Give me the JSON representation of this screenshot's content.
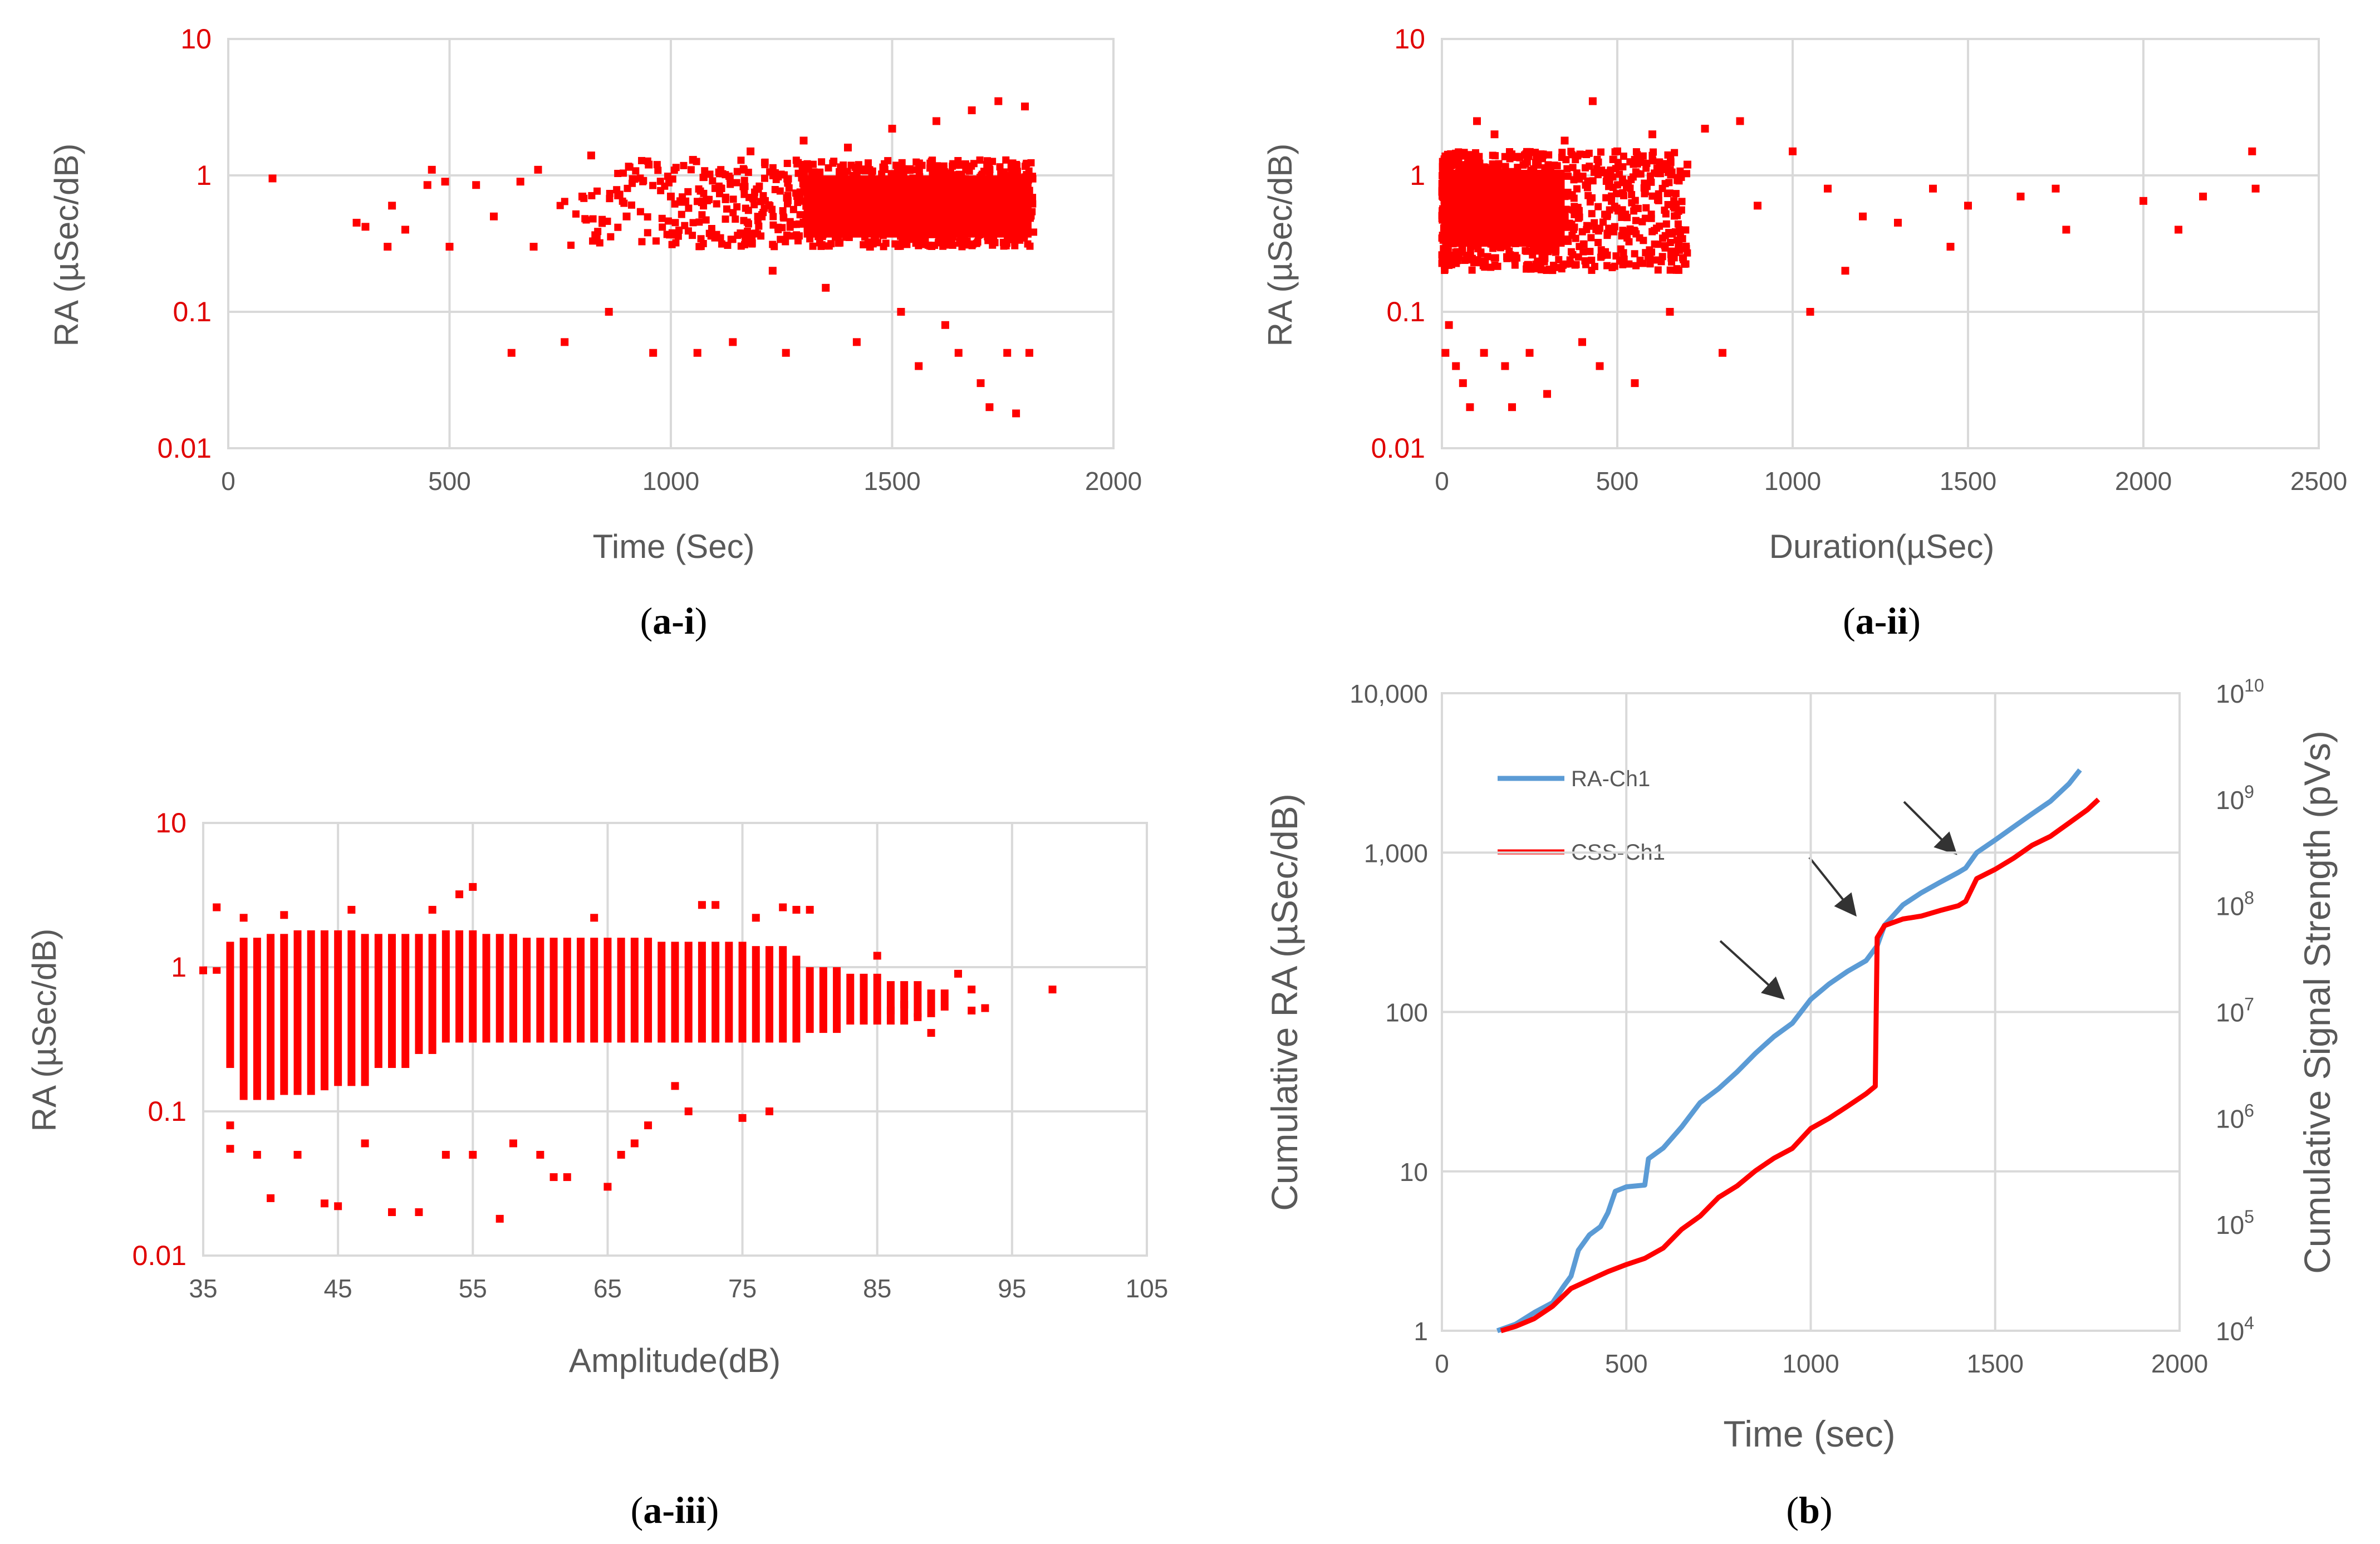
{
  "chart_data": [
    {
      "id": "a-i",
      "type": "scatter",
      "caption": {
        "prefix": "(",
        "bold": "a-i",
        "suffix": ")"
      },
      "xlabel": "Time (Sec)",
      "ylabel": "RA (µSec/dB)",
      "xlim": [
        0,
        2000
      ],
      "ylim": [
        0.01,
        10
      ],
      "yscale": "log",
      "xticks": [
        0,
        500,
        1000,
        1500,
        2000
      ],
      "yticks": [
        0.01,
        0.1,
        1,
        10
      ],
      "xtick_labels": [
        "0",
        "500",
        "1000",
        "1500",
        "2000"
      ],
      "ytick_labels": [
        "0.01",
        "0.1",
        "1",
        "10"
      ],
      "series": [
        {
          "name": "RA",
          "color": "#ff0000",
          "marker": "square",
          "points": [
            [
              100,
              0.95
            ],
            [
              290,
              0.45
            ],
            [
              310,
              0.42
            ],
            [
              360,
              0.3
            ],
            [
              370,
              0.6
            ],
            [
              400,
              0.4
            ],
            [
              450,
              0.85
            ],
            [
              460,
              1.1
            ],
            [
              490,
              0.9
            ],
            [
              500,
              0.3
            ],
            [
              560,
              0.85
            ],
            [
              600,
              0.5
            ],
            [
              640,
              0.05
            ],
            [
              660,
              0.9
            ],
            [
              690,
              0.3
            ],
            [
              700,
              1.1
            ],
            [
              760,
              0.06
            ],
            [
              800,
              0.7
            ],
            [
              820,
              1.4
            ],
            [
              860,
              0.1
            ],
            [
              900,
              0.5
            ],
            [
              950,
              1.2
            ],
            [
              960,
              0.05
            ],
            [
              1000,
              0.7
            ],
            [
              1050,
              1.3
            ],
            [
              1060,
              0.05
            ],
            [
              1100,
              0.35
            ],
            [
              1140,
              0.06
            ],
            [
              1180,
              1.5
            ],
            [
              1230,
              0.2
            ],
            [
              1260,
              0.05
            ],
            [
              1300,
              1.8
            ],
            [
              1350,
              0.15
            ],
            [
              1400,
              1.6
            ],
            [
              1420,
              0.06
            ],
            [
              1450,
              0.3
            ],
            [
              1500,
              2.2
            ],
            [
              1520,
              0.1
            ],
            [
              1560,
              0.04
            ],
            [
              1600,
              2.5
            ],
            [
              1620,
              0.08
            ],
            [
              1650,
              0.05
            ],
            [
              1680,
              3.0
            ],
            [
              1700,
              0.03
            ],
            [
              1720,
              0.02
            ],
            [
              1740,
              3.5
            ],
            [
              1760,
              0.05
            ],
            [
              1780,
              0.018
            ],
            [
              1800,
              3.2
            ],
            [
              1810,
              0.05
            ]
          ],
          "band": {
            "x_start": 700,
            "x_end": 1820,
            "y_low": 0.3,
            "y_high": 1.3
          }
        }
      ]
    },
    {
      "id": "a-ii",
      "type": "scatter",
      "caption": {
        "prefix": "(",
        "bold": "a-ii",
        "suffix": ")"
      },
      "xlabel": "Duration(µSec)",
      "ylabel": "RA (µSec/dB)",
      "xlim": [
        0,
        2500
      ],
      "ylim": [
        0.01,
        10
      ],
      "yscale": "log",
      "xticks": [
        0,
        500,
        1000,
        1500,
        2000,
        2500
      ],
      "yticks": [
        0.01,
        0.1,
        1,
        10
      ],
      "xtick_labels": [
        "0",
        "500",
        "1000",
        "1500",
        "2000",
        "2500"
      ],
      "ytick_labels": [
        "0.01",
        "0.1",
        "1",
        "10"
      ],
      "series": [
        {
          "name": "RA",
          "color": "#ff0000",
          "marker": "square",
          "points": [
            [
              10,
              0.05
            ],
            [
              20,
              0.08
            ],
            [
              40,
              0.04
            ],
            [
              60,
              0.03
            ],
            [
              80,
              0.02
            ],
            [
              100,
              2.5
            ],
            [
              120,
              0.05
            ],
            [
              150,
              2.0
            ],
            [
              180,
              0.04
            ],
            [
              200,
              0.02
            ],
            [
              250,
              0.05
            ],
            [
              300,
              0.025
            ],
            [
              350,
              1.8
            ],
            [
              400,
              0.06
            ],
            [
              430,
              3.5
            ],
            [
              450,
              0.04
            ],
            [
              500,
              1.5
            ],
            [
              550,
              0.03
            ],
            [
              600,
              2.0
            ],
            [
              650,
              0.1
            ],
            [
              700,
              1.2
            ],
            [
              750,
              2.2
            ],
            [
              800,
              0.05
            ],
            [
              850,
              2.5
            ],
            [
              900,
              0.6
            ],
            [
              1000,
              1.5
            ],
            [
              1050,
              0.1
            ],
            [
              1100,
              0.8
            ],
            [
              1150,
              0.2
            ],
            [
              1200,
              0.5
            ],
            [
              1300,
              0.45
            ],
            [
              1400,
              0.8
            ],
            [
              1450,
              0.3
            ],
            [
              1500,
              0.6
            ],
            [
              1650,
              0.7
            ],
            [
              1750,
              0.8
            ],
            [
              1780,
              0.4
            ],
            [
              2000,
              0.65
            ],
            [
              2100,
              0.4
            ],
            [
              2170,
              0.7
            ],
            [
              2310,
              1.5
            ],
            [
              2320,
              0.8
            ]
          ],
          "band": {
            "x_start": 0,
            "x_end": 700,
            "y_low": 0.2,
            "y_high": 1.5
          }
        }
      ]
    },
    {
      "id": "a-iii",
      "type": "scatter",
      "caption": {
        "prefix": "(",
        "bold": "a-iii",
        "suffix": ")"
      },
      "xlabel": "Amplitude(dB)",
      "ylabel": "RA (µSec/dB)",
      "xlim": [
        35,
        105
      ],
      "ylim": [
        0.01,
        10
      ],
      "yscale": "log",
      "xticks": [
        35,
        45,
        55,
        65,
        75,
        85,
        95,
        105
      ],
      "yticks": [
        0.01,
        0.1,
        1,
        10
      ],
      "xtick_labels": [
        "35",
        "45",
        "55",
        "65",
        "75",
        "85",
        "95",
        "105"
      ],
      "ytick_labels": [
        "0.01",
        "0.1",
        "1",
        "10"
      ],
      "series": [
        {
          "name": "RA",
          "color": "#ff0000",
          "marker": "square",
          "columns": {
            "x_start": 36,
            "x_end": 90,
            "low": [
              0.9,
              0.2,
              0.12,
              0.12,
              0.12,
              0.13,
              0.13,
              0.13,
              0.14,
              0.15,
              0.15,
              0.15,
              0.2,
              0.2,
              0.2,
              0.25,
              0.25,
              0.3,
              0.3,
              0.3,
              0.3,
              0.3,
              0.3,
              0.3,
              0.3,
              0.3,
              0.3,
              0.3,
              0.3,
              0.3,
              0.3,
              0.3,
              0.3,
              0.3,
              0.3,
              0.3,
              0.3,
              0.3,
              0.3,
              0.3,
              0.3,
              0.3,
              0.3,
              0.3,
              0.35,
              0.35,
              0.35,
              0.4,
              0.4,
              0.4,
              0.4,
              0.4,
              0.45,
              0.45,
              0.5
            ],
            "high": [
              1.0,
              1.5,
              1.6,
              1.6,
              1.7,
              1.7,
              1.8,
              1.8,
              1.8,
              1.8,
              1.8,
              1.7,
              1.7,
              1.7,
              1.7,
              1.7,
              1.7,
              1.8,
              1.8,
              1.8,
              1.7,
              1.7,
              1.7,
              1.6,
              1.6,
              1.6,
              1.6,
              1.6,
              1.6,
              1.6,
              1.6,
              1.6,
              1.6,
              1.5,
              1.5,
              1.5,
              1.5,
              1.5,
              1.5,
              1.5,
              1.4,
              1.4,
              1.4,
              1.2,
              1.0,
              1.0,
              1.0,
              0.9,
              0.9,
              0.9,
              0.8,
              0.8,
              0.8,
              0.7,
              0.7
            ]
          },
          "points": [
            [
              35,
              0.95
            ],
            [
              36,
              2.6
            ],
            [
              37,
              0.055
            ],
            [
              37,
              0.08
            ],
            [
              38,
              2.2
            ],
            [
              39,
              0.05
            ],
            [
              40,
              0.025
            ],
            [
              41,
              2.3
            ],
            [
              42,
              0.05
            ],
            [
              44,
              0.023
            ],
            [
              45,
              0.022
            ],
            [
              46,
              2.5
            ],
            [
              47,
              0.06
            ],
            [
              49,
              0.02
            ],
            [
              51,
              0.02
            ],
            [
              52,
              2.5
            ],
            [
              53,
              0.05
            ],
            [
              54,
              3.2
            ],
            [
              55,
              3.6
            ],
            [
              55,
              0.05
            ],
            [
              57,
              0.018
            ],
            [
              58,
              0.06
            ],
            [
              60,
              0.05
            ],
            [
              61,
              0.035
            ],
            [
              62,
              0.035
            ],
            [
              64,
              2.2
            ],
            [
              65,
              0.03
            ],
            [
              66,
              0.05
            ],
            [
              67,
              0.06
            ],
            [
              68,
              0.08
            ],
            [
              70,
              0.15
            ],
            [
              71,
              0.1
            ],
            [
              72,
              2.7
            ],
            [
              73,
              2.7
            ],
            [
              75,
              0.09
            ],
            [
              76,
              2.2
            ],
            [
              77,
              0.1
            ],
            [
              78,
              2.6
            ],
            [
              79,
              2.5
            ],
            [
              80,
              2.5
            ],
            [
              85,
              1.2
            ],
            [
              86,
              0.5
            ],
            [
              87,
              0.55
            ],
            [
              88,
              0.45
            ],
            [
              89,
              0.35
            ],
            [
              91,
              0.9
            ],
            [
              92,
              0.7
            ],
            [
              92,
              0.5
            ],
            [
              93,
              0.52
            ],
            [
              98,
              0.7
            ]
          ]
        }
      ]
    },
    {
      "id": "b",
      "type": "line",
      "caption": {
        "prefix": "(",
        "bold": "b",
        "suffix": ")"
      },
      "xlabel": "Time (sec)",
      "ylabel": "Cumulative RA (µSec/dB)",
      "y2label": "Cumulative Signal Strength (pVs)",
      "xlim": [
        0,
        2000
      ],
      "ylim": [
        1,
        10000
      ],
      "yscale": "log",
      "y2lim": [
        10000,
        10000000000
      ],
      "y2scale": "log",
      "xticks": [
        0,
        500,
        1000,
        1500,
        2000
      ],
      "xtick_labels": [
        "0",
        "500",
        "1000",
        "1500",
        "2000"
      ],
      "yticks": [
        1,
        10,
        100,
        1000,
        10000
      ],
      "ytick_labels": [
        "1",
        "10",
        "100",
        "1,000",
        "10,000"
      ],
      "y2ticks": [
        10000,
        100000,
        1000000,
        10000000,
        100000000,
        1000000000,
        10000000000
      ],
      "y2tick_labels": [
        {
          "base": "10",
          "exp": "4"
        },
        {
          "base": "10",
          "exp": "5"
        },
        {
          "base": "10",
          "exp": "6"
        },
        {
          "base": "10",
          "exp": "7"
        },
        {
          "base": "10",
          "exp": "8"
        },
        {
          "base": "10",
          "exp": "9"
        },
        {
          "base": "10",
          "exp": "10"
        }
      ],
      "legend_position": "top-left",
      "annotations": "three arrows",
      "series": [
        {
          "name": "RA-Ch1",
          "color": "#5b9bd5",
          "axis": "left",
          "x": [
            150,
            200,
            250,
            300,
            330,
            350,
            370,
            400,
            430,
            450,
            470,
            500,
            550,
            560,
            600,
            650,
            700,
            750,
            800,
            850,
            900,
            950,
            1000,
            1050,
            1100,
            1150,
            1180,
            1200,
            1250,
            1300,
            1350,
            1400,
            1420,
            1450,
            1500,
            1550,
            1600,
            1650,
            1700,
            1730
          ],
          "y": [
            1.0,
            1.1,
            1.3,
            1.5,
            1.9,
            2.2,
            3.2,
            4.0,
            4.5,
            5.5,
            7.5,
            8.0,
            8.2,
            12,
            14,
            19,
            27,
            33,
            42,
            55,
            70,
            85,
            120,
            150,
            180,
            210,
            260,
            350,
            470,
            560,
            650,
            750,
            800,
            1000,
            1200,
            1450,
            1750,
            2100,
            2700,
            3300
          ]
        },
        {
          "name": "CSS-Ch1",
          "color": "#ff0000",
          "axis": "right",
          "x": [
            160,
            200,
            250,
            300,
            350,
            400,
            450,
            500,
            550,
            600,
            650,
            700,
            750,
            800,
            850,
            900,
            950,
            1000,
            1050,
            1100,
            1150,
            1175,
            1180,
            1200,
            1250,
            1300,
            1350,
            1400,
            1420,
            1450,
            1500,
            1550,
            1600,
            1650,
            1700,
            1750,
            1780
          ],
          "y": [
            10000,
            11000,
            13000,
            17000,
            25000,
            30000,
            36000,
            42000,
            48000,
            60000,
            90000,
            120000,
            180000,
            230000,
            320000,
            420000,
            520000,
            800000,
            1000000,
            1300000,
            1700000,
            2000000,
            50000000,
            65000000,
            75000000,
            80000000,
            90000000,
            100000000,
            110000000,
            180000000,
            220000000,
            280000000,
            370000000,
            450000000,
            600000000,
            800000000,
            1000000000
          ]
        }
      ]
    }
  ]
}
